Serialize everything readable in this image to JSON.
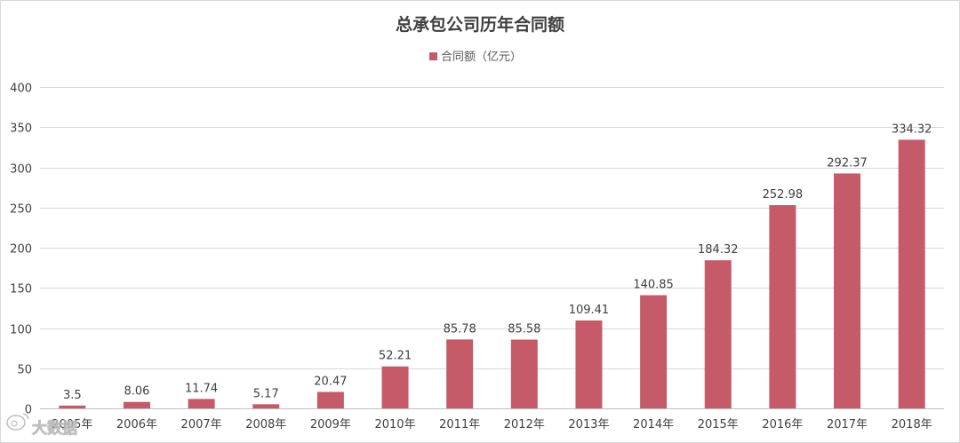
{
  "chart_data": {
    "type": "bar",
    "title": "总承包公司历年合同额",
    "legend_position": "top",
    "grid": true,
    "ylim": [
      0,
      400
    ],
    "yticks": [
      0,
      50,
      100,
      150,
      200,
      250,
      300,
      350,
      400
    ],
    "categories": [
      "2005年",
      "2006年",
      "2007年",
      "2008年",
      "2009年",
      "2010年",
      "2011年",
      "2012年",
      "2013年",
      "2014年",
      "2015年",
      "2016年",
      "2017年",
      "2018年"
    ],
    "series": [
      {
        "name": "合同额（亿元）",
        "color": "#c55a68",
        "values": [
          3.5,
          8.06,
          11.74,
          5.17,
          20.47,
          52.21,
          85.78,
          85.58,
          109.41,
          140.85,
          184.32,
          252.98,
          292.37,
          334.32
        ],
        "labels": [
          "3.5",
          "8.06",
          "11.74",
          "5.17",
          "20.47",
          "52.21",
          "85.78",
          "85.58",
          "109.41",
          "140.85",
          "184.32",
          "252.98",
          "292.37",
          "334.32"
        ]
      }
    ]
  },
  "watermark": {
    "text": "大数据",
    "icon": "weibo-icon"
  }
}
